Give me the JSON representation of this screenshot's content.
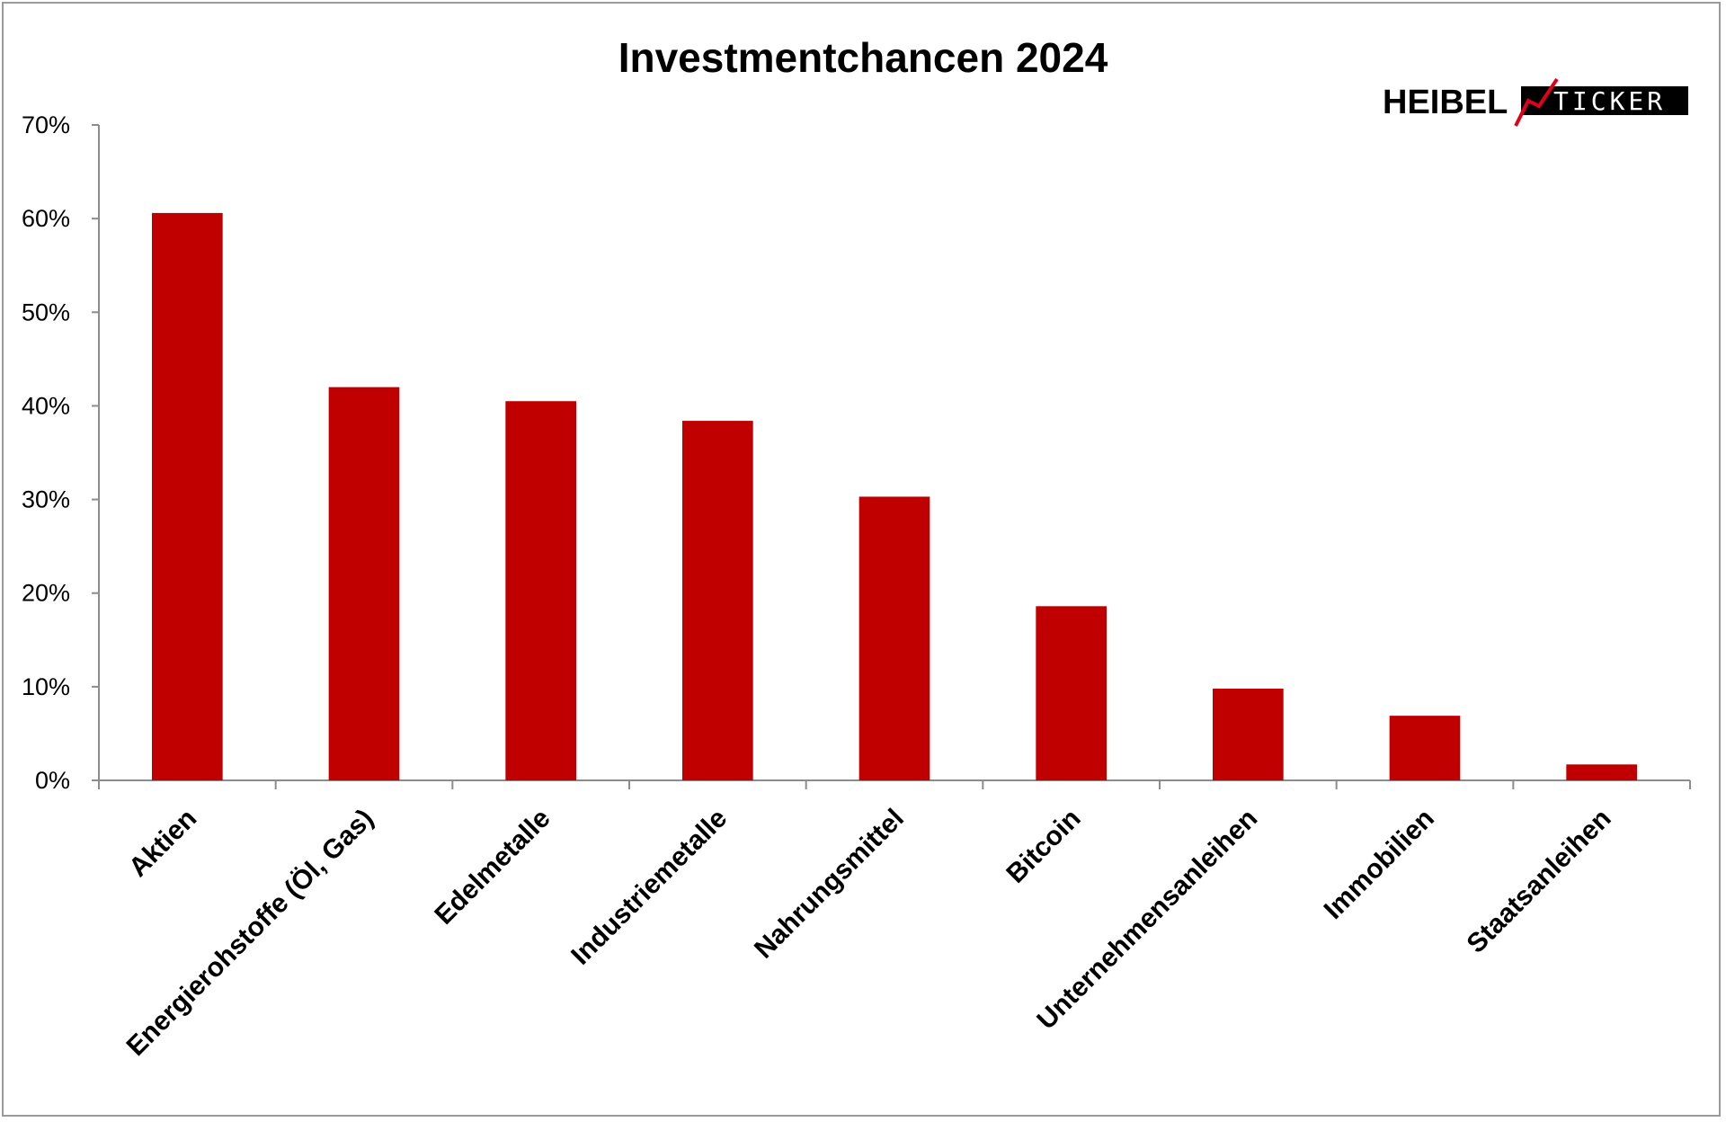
{
  "chart_data": {
    "type": "bar",
    "title": "Investmentchancen 2024",
    "categories": [
      "Aktien",
      "Energierohstoffe (Öl, Gas)",
      "Edelmetalle",
      "Industriemetalle",
      "Nahrungsmittel",
      "Bitcoin",
      "Unternehmensanleihen",
      "Immobilien",
      "Staatsanleihen"
    ],
    "values": [
      60.6,
      42.0,
      40.5,
      38.4,
      30.3,
      18.6,
      9.8,
      6.9,
      1.7
    ],
    "ylim": [
      0,
      70
    ],
    "yticks": [
      "0%",
      "10%",
      "20%",
      "30%",
      "40%",
      "50%",
      "60%",
      "70%"
    ],
    "xlabel": "",
    "ylabel": "",
    "grid": false,
    "bar_color": "#c00000"
  },
  "logo": {
    "heibel": "HEIBEL",
    "ticker": "TICKER",
    "accent_color": "#e0001a"
  }
}
